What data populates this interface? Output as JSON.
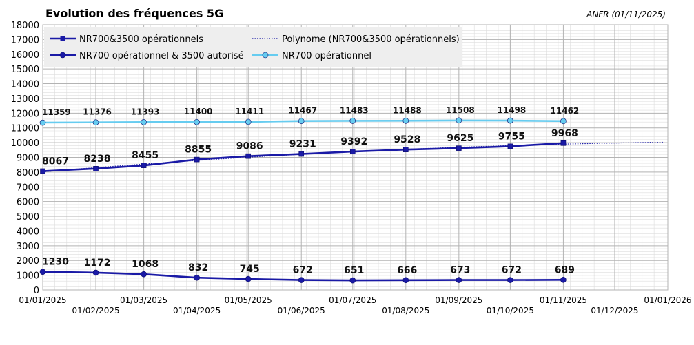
{
  "chart_data": {
    "type": "line",
    "title": "Evolution des fréquences 5G",
    "source_note": "ANFR (01/11/2025)",
    "x": [
      "01/01/2025",
      "01/02/2025",
      "01/03/2025",
      "01/04/2025",
      "01/05/2025",
      "01/06/2025",
      "01/07/2025",
      "01/08/2025",
      "01/09/2025",
      "01/10/2025",
      "01/11/2025"
    ],
    "x_ticks": [
      "01/01/2025",
      "01/02/2025",
      "01/03/2025",
      "01/04/2025",
      "01/05/2025",
      "01/06/2025",
      "01/07/2025",
      "01/08/2025",
      "01/09/2025",
      "01/10/2025",
      "01/11/2025",
      "01/12/2025",
      "01/01/2026"
    ],
    "xlim": [
      "01/01/2025",
      "01/01/2026"
    ],
    "ylim": [
      0,
      18000
    ],
    "y_ticks": [
      0,
      1000,
      2000,
      3000,
      4000,
      5000,
      6000,
      7000,
      8000,
      9000,
      10000,
      11000,
      12000,
      13000,
      14000,
      15000,
      16000,
      17000,
      18000
    ],
    "grid": true,
    "legend_placement": "top-left",
    "series": [
      {
        "name": "NR700&3500 opérationnels",
        "color": "#1a1aa6",
        "marker": "square",
        "values": [
          8067,
          8238,
          8455,
          8855,
          9086,
          9231,
          9392,
          9528,
          9625,
          9755,
          9968
        ]
      },
      {
        "name": "NR700 opérationnel & 3500 autorisé",
        "color": "#1a1aa6",
        "marker": "circle",
        "values": [
          1230,
          1172,
          1068,
          832,
          745,
          672,
          651,
          666,
          673,
          672,
          689
        ]
      },
      {
        "name": "NR700 opérationnel",
        "color": "#66ccf0",
        "marker": "circle",
        "values": [
          11359,
          11376,
          11393,
          11400,
          11411,
          11467,
          11483,
          11488,
          11508,
          11498,
          11462
        ]
      }
    ],
    "trendline": {
      "name": "Polynome (NR700&3500 opérationnels)",
      "of": "NR700&3500 opérationnels",
      "style": "dotted",
      "color": "#1a1aa6",
      "extends_to": "01/01/2026"
    }
  }
}
